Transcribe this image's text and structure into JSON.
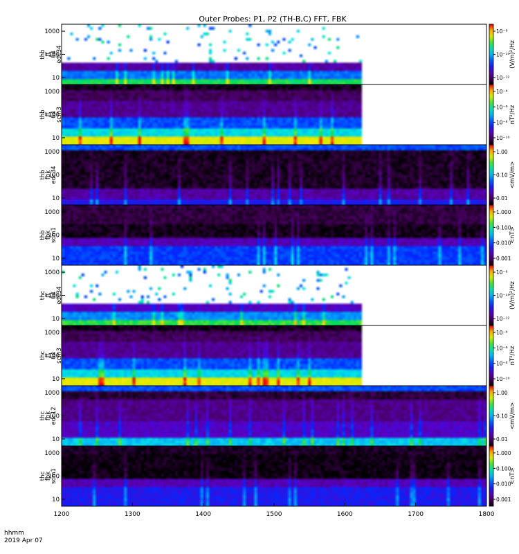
{
  "title": "Outer Probes: P1, P2 (TH-B,C) FFT, FBK",
  "time_axis": {
    "units_label": "hhmm",
    "date_label": "2019 Apr 07",
    "ticks": [
      "1200",
      "1300",
      "1400",
      "1500",
      "1600",
      "1700",
      "1800"
    ]
  },
  "chart_data": [
    {
      "type": "heatmap",
      "ylabel": [
        "thb",
        "ff",
        "64",
        "edc34"
      ],
      "yticks": [
        "10",
        "100",
        "1000"
      ],
      "yscale": "log",
      "xrange": [
        1200,
        1800
      ],
      "data_end": 1625,
      "colorbar": {
        "label": "(V/m)²/Hz",
        "ticks": [
          "10⁻⁸",
          "10⁻¹⁰",
          "10⁻¹²"
        ]
      }
    },
    {
      "type": "heatmap",
      "ylabel": [
        "thb",
        "ff",
        "64",
        "scm3"
      ],
      "yticks": [
        "10",
        "100",
        "1000"
      ],
      "yscale": "log",
      "xrange": [
        1200,
        1800
      ],
      "data_end": 1625,
      "colorbar": {
        "label": "nT²/Hz",
        "ticks": [
          "10⁻⁴",
          "10⁻⁶",
          "10⁻⁸",
          "10⁻¹⁰"
        ]
      }
    },
    {
      "type": "heatmap",
      "ylabel": [
        "thb",
        "fbk",
        "edc34"
      ],
      "yticks": [
        "10",
        "100",
        "1000"
      ],
      "yscale": "log",
      "xrange": [
        1200,
        1800
      ],
      "data_end": 1800,
      "colorbar": {
        "label": "<mV/m>",
        "ticks": [
          "1.00",
          "0.10",
          "0.01"
        ]
      }
    },
    {
      "type": "heatmap",
      "ylabel": [
        "thb",
        "fbk",
        "scm1"
      ],
      "yticks": [
        "10",
        "100",
        "1000"
      ],
      "yscale": "log",
      "xrange": [
        1200,
        1800
      ],
      "data_end": 1800,
      "colorbar": {
        "label": "<nT>",
        "ticks": [
          "1.000",
          "0.100",
          "0.010",
          "0.001"
        ]
      }
    },
    {
      "type": "heatmap",
      "ylabel": [
        "thc",
        "ff",
        "64",
        "edc34"
      ],
      "yticks": [
        "10",
        "100",
        "1000"
      ],
      "yscale": "log",
      "xrange": [
        1200,
        1800
      ],
      "data_end": 1625,
      "colorbar": {
        "label": "(V/m)²/Hz",
        "ticks": [
          "10⁻⁸",
          "10⁻¹⁰",
          "10⁻¹²"
        ]
      }
    },
    {
      "type": "heatmap",
      "ylabel": [
        "thc",
        "ff",
        "64",
        "scm3"
      ],
      "yticks": [
        "10",
        "100",
        "1000"
      ],
      "yscale": "log",
      "xrange": [
        1200,
        1800
      ],
      "data_end": 1625,
      "colorbar": {
        "label": "nT²/Hz",
        "ticks": [
          "10⁻⁴",
          "10⁻⁶",
          "10⁻⁸",
          "10⁻¹⁰"
        ]
      }
    },
    {
      "type": "heatmap",
      "ylabel": [
        "thc",
        "fbk",
        "edc12"
      ],
      "yticks": [
        "10",
        "100",
        "1000"
      ],
      "yscale": "log",
      "xrange": [
        1200,
        1800
      ],
      "data_end": 1800,
      "colorbar": {
        "label": "<mV/m>",
        "ticks": [
          "1.00",
          "0.10",
          "0.01"
        ]
      }
    },
    {
      "type": "heatmap",
      "ylabel": [
        "thc",
        "fbk",
        "scm1"
      ],
      "yticks": [
        "10",
        "100",
        "1000"
      ],
      "yscale": "log",
      "xrange": [
        1200,
        1800
      ],
      "data_end": 1800,
      "colorbar": {
        "label": "<nT>",
        "ticks": [
          "1.000",
          "0.100",
          "0.010",
          "0.001"
        ]
      }
    }
  ]
}
